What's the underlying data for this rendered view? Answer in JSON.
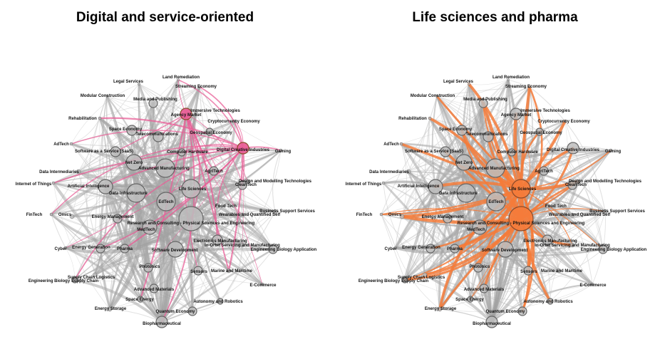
{
  "panels": [
    {
      "title": "Digital and service-oriented",
      "highlight_color": "#e85f97",
      "highlighted_nodes": [
        "Agency Market",
        "Digital Creative Industries"
      ]
    },
    {
      "title": "Life sciences and pharma",
      "highlight_color": "#f47b3a",
      "highlighted_nodes": [
        "Life Sciences",
        "Research and Consulting - Physical Sciences and Engineering"
      ]
    }
  ],
  "nodes": [
    {
      "label": "Legal Services"
    },
    {
      "label": "Land Remediation"
    },
    {
      "label": "Streaming Economy"
    },
    {
      "label": "Modular Construction"
    },
    {
      "label": "Media and Publishing"
    },
    {
      "label": "Immersive Technologies"
    },
    {
      "label": "Rehabilitation"
    },
    {
      "label": "Agency Market"
    },
    {
      "label": "Cryptocurrency Economy"
    },
    {
      "label": "Space Economy"
    },
    {
      "label": "Telecommunications"
    },
    {
      "label": "Geospatial Economy"
    },
    {
      "label": "AdTech"
    },
    {
      "label": "Software as a Service (SaaS)"
    },
    {
      "label": "Digital Creative Industries"
    },
    {
      "label": "Gaming"
    },
    {
      "label": "Computer Hardware"
    },
    {
      "label": "Net Zero"
    },
    {
      "label": "Advanced Manufacturing"
    },
    {
      "label": "AgriTech"
    },
    {
      "label": "Data Intermediaries"
    },
    {
      "label": "Design and Modelling Technologies"
    },
    {
      "label": "Internet of Things"
    },
    {
      "label": "Artificial Intelligence"
    },
    {
      "label": "CleanTech"
    },
    {
      "label": "Data Infrastructure"
    },
    {
      "label": "Life Sciences"
    },
    {
      "label": "Food Tech"
    },
    {
      "label": "EdTech"
    },
    {
      "label": "FinTech"
    },
    {
      "label": "Omics"
    },
    {
      "label": "Business Support Services"
    },
    {
      "label": "Energy Management"
    },
    {
      "label": "Wearables and Quantified Self"
    },
    {
      "label": "Research and Consulting - Physical Sciences and Engineering"
    },
    {
      "label": "MedTech"
    },
    {
      "label": "Electronics Manufacturing"
    },
    {
      "label": "In-Orbit Servicing and Manufacturing"
    },
    {
      "label": "Cyber"
    },
    {
      "label": "Energy Generation"
    },
    {
      "label": "Pharma"
    },
    {
      "label": "Software Development"
    },
    {
      "label": "Engineering Biology Application"
    },
    {
      "label": "Photonics"
    },
    {
      "label": "Supply Chain Logistics"
    },
    {
      "label": "Sensors"
    },
    {
      "label": "Marine and Maritime"
    },
    {
      "label": "Engineering Biology Supply Chain"
    },
    {
      "label": "Advanced Materials"
    },
    {
      "label": "E-Commerce"
    },
    {
      "label": "Space Energy"
    },
    {
      "label": "Autonomy and Robotics"
    },
    {
      "label": "Energy Storage"
    },
    {
      "label": "Quantum Economy"
    },
    {
      "label": "Biopharmaceutical"
    }
  ]
}
